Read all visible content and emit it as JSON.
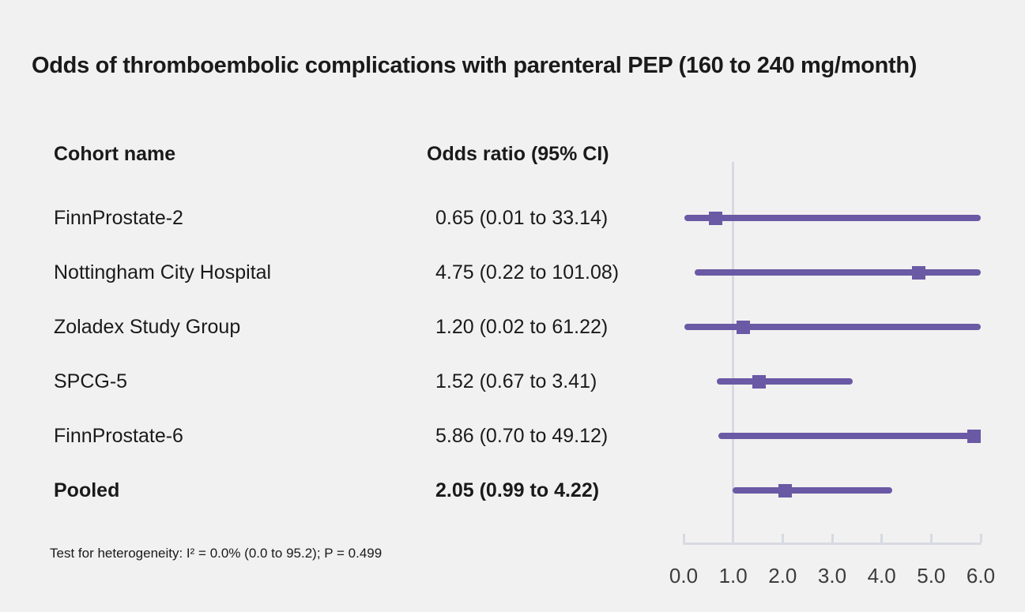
{
  "title": "Odds of thromboembolic complications with parenteral PEP (160 to 240 mg/month)",
  "columns": {
    "cohort": "Cohort name",
    "odds": "Odds ratio (95% CI)"
  },
  "footnote": "Test for heterogeneity: I² = 0.0% (0.0 to 95.2); P = 0.499",
  "colors": {
    "background": "#f2f1f1",
    "text": "#1a1a1a",
    "marker_purple": "#6a59a5",
    "axis_gray": "#d7dae2",
    "tick_label_gray": "#3c3c3c"
  },
  "chart_data": {
    "type": "forest",
    "title": "Odds of thromboembolic complications with parenteral PEP (160 to 240 mg/month)",
    "xlabel": "Odds ratio",
    "xlim": [
      0,
      6
    ],
    "tick_values": [
      0,
      1,
      2,
      3,
      4,
      5,
      6
    ],
    "ticks": [
      "0.0",
      "1.0",
      "2.0",
      "3.0",
      "4.0",
      "5.0",
      "6.0"
    ],
    "reference_line": 1.0,
    "grid": false,
    "legend": "none",
    "rows": [
      {
        "label": "FinnProstate-2",
        "display": "0.65 (0.01 to 33.14)",
        "estimate": 0.65,
        "ci_low": 0.01,
        "ci_high": 33.14,
        "bold": false
      },
      {
        "label": "Nottingham City Hospital",
        "display": "4.75 (0.22 to 101.08)",
        "estimate": 4.75,
        "ci_low": 0.22,
        "ci_high": 101.08,
        "bold": false
      },
      {
        "label": "Zoladex Study Group",
        "display": "1.20 (0.02 to 61.22)",
        "estimate": 1.2,
        "ci_low": 0.02,
        "ci_high": 61.22,
        "bold": false
      },
      {
        "label": "SPCG-5",
        "display": "1.52 (0.67 to 3.41)",
        "estimate": 1.52,
        "ci_low": 0.67,
        "ci_high": 3.41,
        "bold": false
      },
      {
        "label": "FinnProstate-6",
        "display": "5.86 (0.70 to 49.12)",
        "estimate": 5.86,
        "ci_low": 0.7,
        "ci_high": 49.12,
        "bold": false
      },
      {
        "label": "Pooled",
        "display": "2.05 (0.99 to 4.22)",
        "estimate": 2.05,
        "ci_low": 0.99,
        "ci_high": 4.22,
        "bold": true
      }
    ]
  }
}
